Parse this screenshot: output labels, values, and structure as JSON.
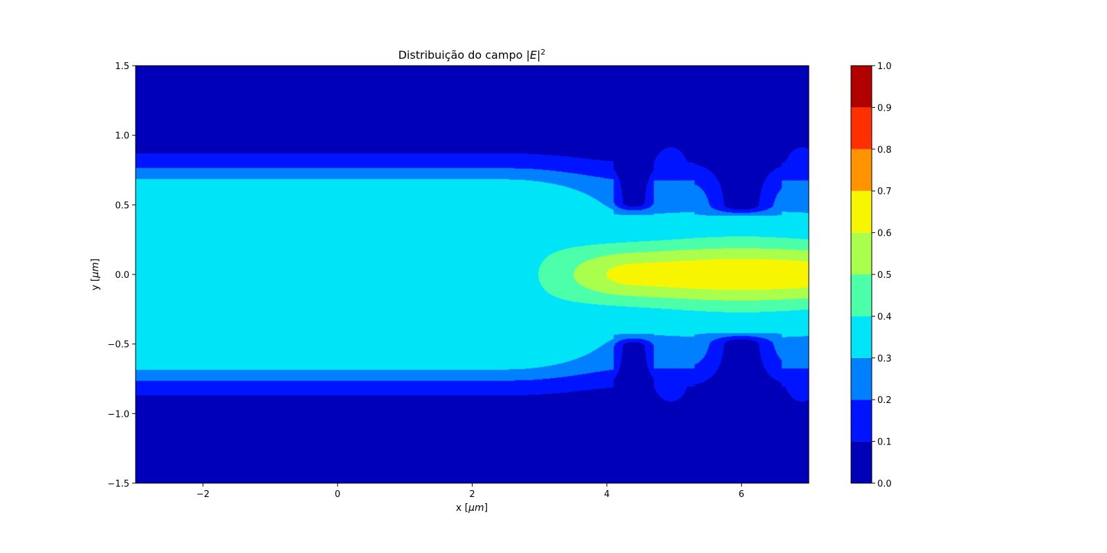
{
  "chart_data": {
    "type": "heatmap",
    "subtype": "filled-contour",
    "title": {
      "prefix": "Distribuição do campo |",
      "italic": "E",
      "suffix": "|",
      "sup": "2"
    },
    "xlabel": {
      "prefix": "x [",
      "italic": "μm",
      "suffix": "]"
    },
    "ylabel": {
      "prefix": "y [",
      "italic": "μm",
      "suffix": "]"
    },
    "xlim": [
      -3,
      7
    ],
    "ylim": [
      -1.5,
      1.5
    ],
    "xticks": [
      {
        "v": -2,
        "label": "−2"
      },
      {
        "v": 0,
        "label": "0"
      },
      {
        "v": 2,
        "label": "2"
      },
      {
        "v": 4,
        "label": "4"
      },
      {
        "v": 6,
        "label": "6"
      }
    ],
    "yticks": [
      {
        "v": -1.5,
        "label": "−1.5"
      },
      {
        "v": -1.0,
        "label": "−1.0"
      },
      {
        "v": -0.5,
        "label": "−0.5"
      },
      {
        "v": 0.0,
        "label": "0.0"
      },
      {
        "v": 0.5,
        "label": "0.5"
      },
      {
        "v": 1.0,
        "label": "1.0"
      },
      {
        "v": 1.5,
        "label": "1.5"
      }
    ],
    "grid": false,
    "colormap": "jet",
    "levels": [
      0.0,
      0.1,
      0.2,
      0.3,
      0.4,
      0.5,
      0.6,
      0.7,
      0.8,
      0.9,
      1.0
    ],
    "level_colors": [
      "#0000b8",
      "#0014ff",
      "#007fff",
      "#00e4f8",
      "#4cffa9",
      "#a9ff4c",
      "#f8f500",
      "#ff9400",
      "#ff3000",
      "#b20000"
    ],
    "colorbar": {
      "ticks": [
        {
          "v": 0.0,
          "label": "0.0"
        },
        {
          "v": 0.1,
          "label": "0.1"
        },
        {
          "v": 0.2,
          "label": "0.2"
        },
        {
          "v": 0.3,
          "label": "0.3"
        },
        {
          "v": 0.4,
          "label": "0.4"
        },
        {
          "v": 0.5,
          "label": "0.5"
        },
        {
          "v": 0.6,
          "label": "0.6"
        },
        {
          "v": 0.7,
          "label": "0.7"
        },
        {
          "v": 0.8,
          "label": "0.8"
        },
        {
          "v": 0.9,
          "label": "0.9"
        },
        {
          "v": 1.0,
          "label": "1.0"
        }
      ]
    },
    "field_model": {
      "description_of_regions_in_data_units": true,
      "waveguide_core_halfwidth_um": 0.47,
      "taper_start_x_um": 2.2,
      "focus_center_x_um": 6.0,
      "peak_value": 0.67,
      "side_lobes": [
        {
          "x": 4.95,
          "y": 0.68,
          "value": 0.16
        },
        {
          "x": 4.95,
          "y": -0.68,
          "value": 0.16
        },
        {
          "x": 6.9,
          "y": 0.68,
          "value": 0.16
        },
        {
          "x": 6.9,
          "y": -0.68,
          "value": 0.16
        }
      ]
    }
  }
}
